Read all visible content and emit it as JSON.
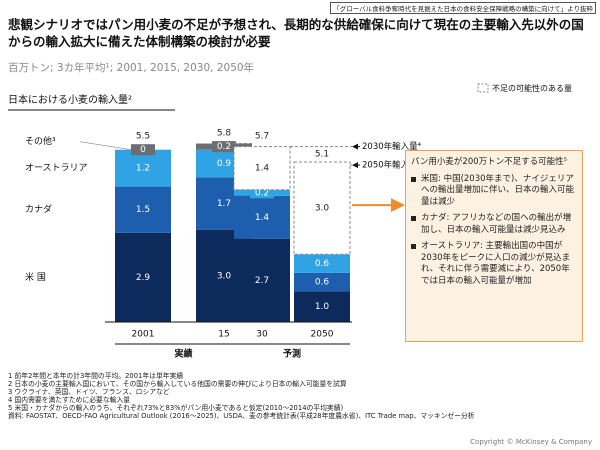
{
  "header_note": "「グローバル食料争奪時代を見据えた日本の食料安全保障戦略の構築に向けて」より抜粋",
  "title": "悲観シナリオではパン用小麦の不足が予想され、長期的な供給確保に向けて現在の主要輸入先以外の国からの輸入拡大に備えた体制構築の検討が必要",
  "subtitle": "百万トン; 3カ年平均¹; 2001, 2015, 2030, 2050年",
  "chart_data": {
    "type": "bar",
    "stacked": true,
    "title": "日本における小麦の輸入量²",
    "categories": [
      "2001",
      "15",
      "30",
      "2050"
    ],
    "group_labels": [
      "実績",
      "予測"
    ],
    "ylim": [
      0,
      6.5
    ],
    "series": [
      {
        "name": "米 国",
        "color": "#0c2b5c",
        "values": [
          2.9,
          3.0,
          2.7,
          1.0
        ],
        "value_labels": [
          "2.9",
          "3.0",
          "2.7",
          "1.0"
        ]
      },
      {
        "name": "カナダ",
        "color": "#1d5fae",
        "values": [
          1.5,
          1.7,
          1.4,
          0.6
        ],
        "value_labels": [
          "1.5",
          "1.7",
          "1.4",
          "0.6"
        ]
      },
      {
        "name": "オーストラリア",
        "color": "#2fa3e3",
        "values": [
          1.2,
          0.9,
          0.2,
          0.6
        ],
        "value_labels": [
          "1.2",
          "0.9",
          "0.2",
          "0.6"
        ]
      },
      {
        "name": "その他³",
        "color": "#6d6e71",
        "values": [
          0,
          0.2,
          null,
          null
        ],
        "value_labels": [
          "0",
          "0.2",
          null,
          null
        ]
      },
      {
        "name": "不足の可能性のある量",
        "color": "#ffffff",
        "dashed": true,
        "values": [
          null,
          null,
          1.4,
          3.0
        ],
        "value_labels": [
          null,
          null,
          "1.4",
          "3.0"
        ]
      }
    ],
    "totals": [
      5.5,
      5.8,
      5.7,
      5.1
    ],
    "annotations": [
      "2030年輸入量⁴",
      "2050年輸入量⁴"
    ]
  },
  "callout": {
    "title": "パン用小麦が200万トン不足する可能性⁵",
    "bullets": [
      "米国: 中国(2030年まで)、ナイジェリアへの輸出量増加に伴い、日本の輸入可能量は減少",
      "カナダ: アフリカなどの国への輸出が増加し、日本の輸入可能量は減少見込み",
      "オーストラリア: 主要輸出国の中国が2030年をピークに人口の減少が見込まれ、それに伴う需要減により、2050年では日本の輸入可能量が増加"
    ]
  },
  "footnotes": [
    "1 前年2年間と本年の計3年間の平均。2001年は単年実績",
    "2 日本の小麦の主要輸入国において、その国から輸入している他国の需要の伸びにより日本の輸入可能量を試算",
    "3 ウクライナ、英国、ドイツ、フランス、ロシアなど",
    "4 国内需要を満たすために必要な輸入量",
    "5 米国・カナダからの輸入のうち、それぞれ73%と83%がパン用小麦であると仮定(2010～2014の平均実績)",
    "資料: FAOSTAT、OECD-FAO Agricultural Outlook (2016～2025)、USDA、麦の参考統計表(平成28年度農水省)、ITC Trade map、マッキンゼー分析"
  ],
  "copyright": "Copyright © McKinsey & Company"
}
